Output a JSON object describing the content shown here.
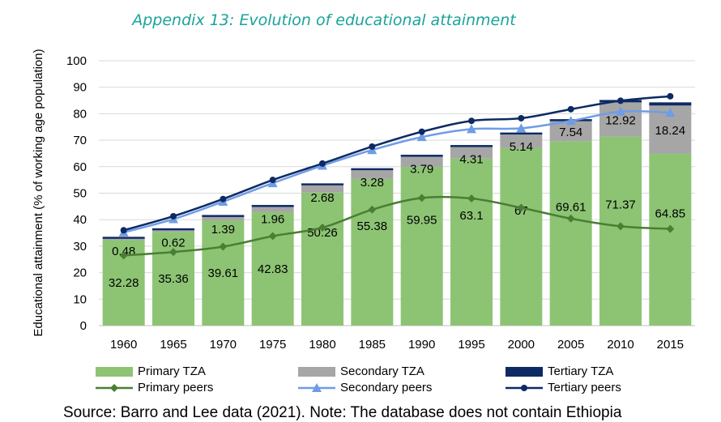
{
  "title": "Appendix 13: Evolution of educational attainment",
  "source_note": "Source: Barro and Lee data (2021). Note: The database does not contain Ethiopia",
  "colors": {
    "primary_tza": "#8dc474",
    "secondary_tza": "#a6a6a6",
    "tertiary_tza": "#0d2a63",
    "primary_peers": "#4a7f33",
    "secondary_peers": "#6f9ce6",
    "tertiary_peers": "#0d2a63",
    "title": "#1aa39a"
  },
  "chart_data": {
    "type": "bar",
    "ylabel": "Educational attainment (% of working age population)",
    "ylim": [
      0,
      100
    ],
    "yticks": [
      0,
      10,
      20,
      30,
      40,
      50,
      60,
      70,
      80,
      90,
      100
    ],
    "grid": true,
    "legend_position": "bottom",
    "categories": [
      "1960",
      "1965",
      "1970",
      "1975",
      "1980",
      "1985",
      "1990",
      "1995",
      "2000",
      "2005",
      "2010",
      "2015"
    ],
    "bar_series": [
      {
        "name": "Primary TZA",
        "color": "#8dc474",
        "values": [
          32.28,
          35.36,
          39.61,
          42.83,
          50.26,
          55.38,
          59.95,
          63.1,
          67,
          69.61,
          71.37,
          64.85
        ],
        "labels": [
          "32.28",
          "35.36",
          "39.61",
          "42.83",
          "50.26",
          "55.38",
          "59.95",
          "63.1",
          "67",
          "69.61",
          "71.37",
          "64.85"
        ]
      },
      {
        "name": "Secondary TZA",
        "color": "#a6a6a6",
        "values": [
          0.48,
          0.62,
          1.39,
          1.96,
          2.68,
          3.28,
          3.79,
          4.31,
          5.14,
          7.54,
          12.92,
          18.24
        ],
        "labels": [
          "0.48",
          "0.62",
          "1.39",
          "1.96",
          "2.68",
          "3.28",
          "3.79",
          "4.31",
          "5.14",
          "7.54",
          "12.92",
          "18.24"
        ]
      },
      {
        "name": "Tertiary TZA",
        "color": "#0d2a63",
        "values": [
          0.1,
          0.1,
          0.1,
          0.2,
          0.3,
          0.4,
          0.5,
          0.6,
          0.7,
          0.8,
          0.9,
          1.2
        ]
      }
    ],
    "line_series": [
      {
        "name": "Primary peers",
        "color": "#4a7f33",
        "marker": "diamond",
        "values": [
          26.5,
          27.8,
          29.8,
          33.8,
          37,
          43.8,
          48.2,
          48,
          44.5,
          40.4,
          37.5,
          36.5
        ]
      },
      {
        "name": "Secondary peers",
        "color": "#6f9ce6",
        "marker": "triangle",
        "values": [
          35.2,
          40.2,
          46.8,
          53.8,
          60.4,
          66.3,
          71.2,
          74.2,
          74.5,
          77.3,
          80.8,
          80.4
        ]
      },
      {
        "name": "Tertiary peers",
        "color": "#0d2a63",
        "marker": "circle",
        "values": [
          36,
          41.3,
          47.8,
          55,
          61.2,
          67.6,
          73.2,
          77.3,
          78.3,
          81.7,
          84.9,
          86.6
        ]
      }
    ]
  }
}
